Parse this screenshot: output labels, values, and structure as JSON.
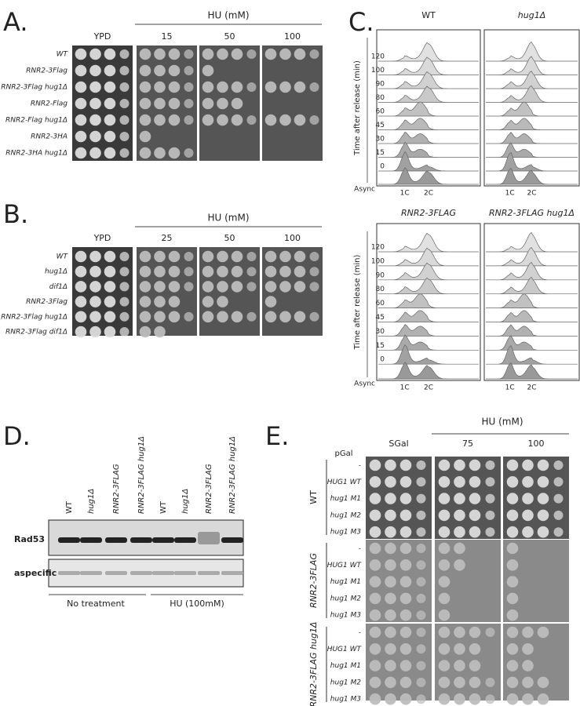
{
  "panel_a": {
    "label": "A.",
    "hu_header": "HU (mM)",
    "columns": [
      "YPD",
      15,
      50,
      100
    ],
    "rows": [
      "WT",
      "RNR2-3Flag",
      "RNR2-3Flag hug1Δ",
      "RNR2-Flag",
      "RNR2-Flag hug1Δ",
      "RNR2-3HA",
      "RNR2-3HA hug1Δ"
    ]
  },
  "panel_b": {
    "label": "B.",
    "hu_header": "HU (mM)",
    "columns": [
      "YPD",
      25,
      50,
      100
    ],
    "rows": [
      "WT",
      "hug1Δ",
      "dif1Δ",
      "RNR2-3Flag",
      "RNR2-3Flag hug1Δ",
      "RNR2-3Flag dif1Δ"
    ]
  },
  "panel_c": {
    "label": "C.",
    "y_axis_label": "Time after release (min)",
    "times": [
      120,
      100,
      90,
      80,
      60,
      45,
      30,
      15,
      0
    ],
    "async": "Async",
    "peaks": [
      "1C",
      "2C"
    ],
    "top_titles": [
      "WT",
      "hug1Δ"
    ],
    "bottom_titles": [
      "RNR2-3FLAG",
      "RNR2-3FLAG hug1Δ"
    ]
  },
  "panel_d": {
    "label": "D.",
    "lanes": [
      "WT",
      "hug1Δ",
      "RNR2-3FLAG",
      "RNR2-3FLAG hug1Δ"
    ],
    "blots": [
      "Rad53",
      "aspecific"
    ],
    "treatments": [
      "No treatment",
      "HU (100mM)"
    ]
  },
  "panel_e": {
    "label": "E.",
    "hu_header": "HU (mM)",
    "columns": [
      "SGal",
      75,
      100
    ],
    "promoter": "pGal",
    "groups": [
      {
        "name": "WT",
        "rows": [
          "-",
          "HUG1 WT",
          "hug1 M1",
          "hug1 M2",
          "hug1 M3"
        ]
      },
      {
        "name": "RNR2-3FLAG",
        "rows": [
          "-",
          "HUG1 WT",
          "hug1 M1",
          "hug1 M2",
          "hug1 M3"
        ]
      },
      {
        "name": "RNR2-3FLAG hug1Δ",
        "rows": [
          "-",
          "HUG1 WT",
          "hug1 M1",
          "hug1 M2",
          "hug1 M3"
        ]
      }
    ]
  }
}
